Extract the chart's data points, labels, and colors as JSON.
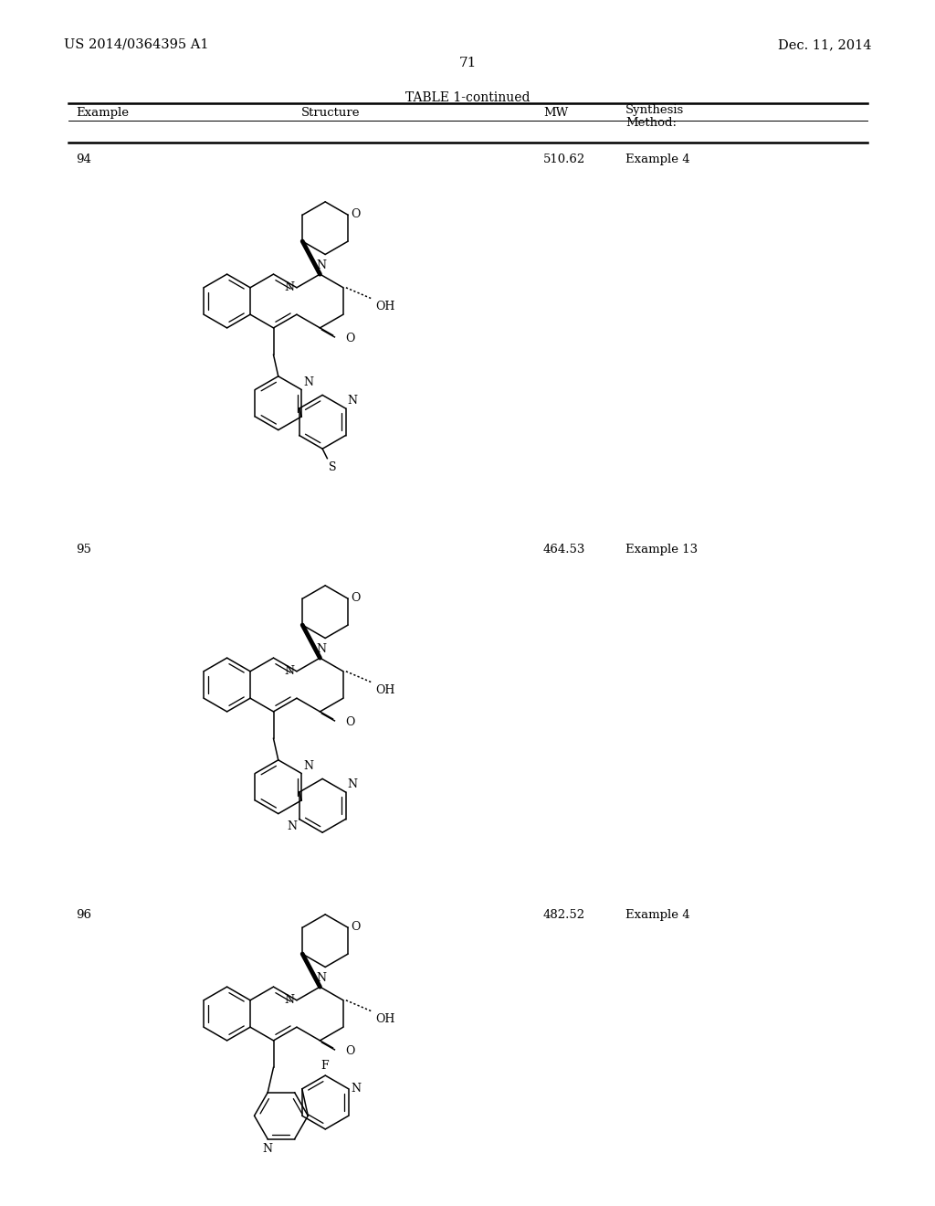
{
  "background_color": "#ffffff",
  "page_number": "71",
  "header_left": "US 2014/0364395 A1",
  "header_right": "Dec. 11, 2014",
  "table_title": "TABLE 1-continued",
  "rows": [
    {
      "example": "94",
      "mw": "510.62",
      "synthesis": "Example 4"
    },
    {
      "example": "95",
      "mw": "464.53",
      "synthesis": "Example 13"
    },
    {
      "example": "96",
      "mw": "482.52",
      "synthesis": "Example 4"
    }
  ]
}
